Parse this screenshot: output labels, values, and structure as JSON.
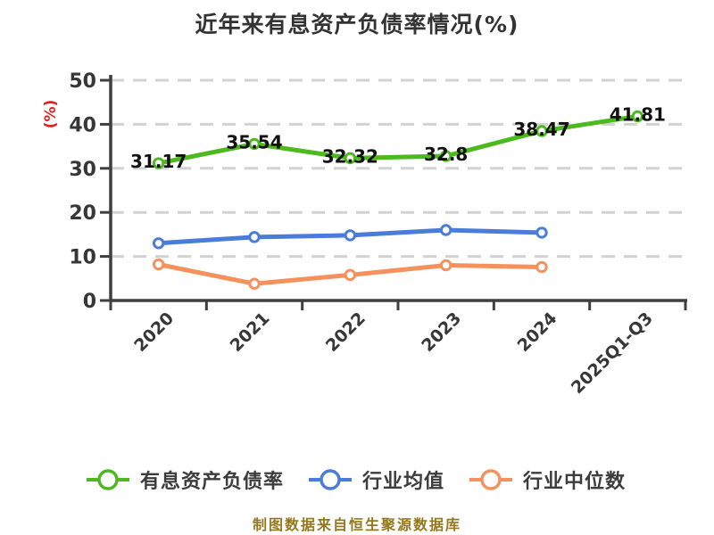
{
  "title": "近年来有息资产负债率情况(%)",
  "footer_note": "制图数据来自恒生聚源数据库",
  "colors": {
    "series_green": "#4cb91e",
    "series_blue": "#4a7cd9",
    "series_orange": "#f4915c",
    "axis": "#3f3f3f",
    "grid": "#d2d2d2",
    "tick_text": "#373737",
    "point_label_text": "#111111",
    "title_text": "#333333",
    "y_unit_label": "#e31d1d",
    "footer_text": "#95781e",
    "legend_text": "#3c3c3c",
    "marker_fill": "#ffffff"
  },
  "chart_data": {
    "type": "line",
    "title": "近年来有息资产负债率情况(%)",
    "xlabel": "",
    "ylabel": "(%)",
    "categories": [
      "2020",
      "2021",
      "2022",
      "2023",
      "2024",
      "2025Q1-Q3"
    ],
    "series": [
      {
        "name": "有息资产负债率",
        "color": "#4cb91e",
        "values": [
          31.17,
          35.54,
          32.32,
          32.8,
          38.47,
          41.81
        ],
        "point_labels": [
          "31.17",
          "35.54",
          "32.32",
          "32.8",
          "38.47",
          "41.81"
        ]
      },
      {
        "name": "行业均值",
        "color": "#4a7cd9",
        "values": [
          13.0,
          14.4,
          14.8,
          16.0,
          15.4,
          null
        ],
        "point_labels": null
      },
      {
        "name": "行业中位数",
        "color": "#f4915c",
        "values": [
          8.2,
          3.8,
          5.8,
          8.0,
          7.6,
          null
        ],
        "point_labels": null
      }
    ],
    "ylim": [
      0,
      50
    ],
    "yticks": [
      0,
      10,
      20,
      30,
      40,
      50
    ],
    "grid": true,
    "grid_style": "dashed",
    "legend_position": "bottom"
  }
}
